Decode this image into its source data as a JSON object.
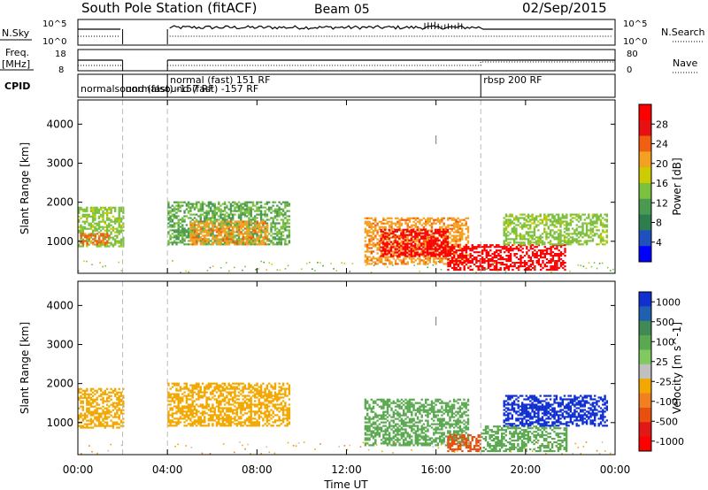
{
  "header": {
    "title": "South Pole Station (fitACF)",
    "beam": "Beam 05",
    "date": "02/Sep/2015"
  },
  "noise_panel": {
    "left_label": "N.Sky",
    "right_label": "N.Search",
    "tick_top": "10^5",
    "tick_bottom": "10^0"
  },
  "freq_panel": {
    "left_label_1": "Freq.",
    "left_label_2": "[MHz]",
    "right_label": "Nave",
    "tick_left_top": "18",
    "tick_left_bottom": "8",
    "tick_right_top": "80",
    "tick_right_bottom": "0"
  },
  "cpid_panel": {
    "label": "CPID",
    "programs": [
      {
        "start_hour": 0.0,
        "text": "normalsound (fast) -157 RF",
        "row": 1
      },
      {
        "start_hour": 2.0,
        "text": "normalsound (fast) -157 RF",
        "row": 1
      },
      {
        "start_hour": 4.0,
        "text": "normal (fast) 151 RF",
        "row": 0
      },
      {
        "start_hour": 18.0,
        "text": "rbsp 200 RF",
        "row": 0
      }
    ]
  },
  "x_axis": {
    "label": "Time UT",
    "ticks": [
      "00:00",
      "04:00",
      "08:00",
      "12:00",
      "16:00",
      "20:00",
      "00:00"
    ],
    "tick_hours": [
      0,
      4,
      8,
      12,
      16,
      20,
      24
    ]
  },
  "colors": {
    "power": [
      "#0000ff",
      "#2050c0",
      "#2e7d4f",
      "#4a9a52",
      "#7cc040",
      "#cccc00",
      "#f4a020",
      "#f06010",
      "#e81010",
      "#ff0000"
    ],
    "velocity": [
      "#1030d0",
      "#2060b0",
      "#3f8a55",
      "#5aa850",
      "#80c860",
      "#c0c0c0",
      "#f2a800",
      "#f08020",
      "#e85010",
      "#e01818",
      "#ff0000"
    ]
  },
  "chart_data": [
    {
      "type": "heatmap",
      "panel": "power",
      "ylabel": "Slant Range [km]",
      "yticks": [
        1000,
        2000,
        3000,
        4000
      ],
      "ylim": [
        180,
        4620
      ],
      "xlim": [
        0,
        24
      ],
      "colorbar_label": "Power [dB]",
      "colorbar_ticks": [
        "4",
        "8",
        "12",
        "16",
        "20",
        "24",
        "28"
      ],
      "colorbar_range": [
        0,
        30
      ],
      "data_gaps_hours": [
        [
          2.0,
          4.0
        ]
      ],
      "echo_regions": [
        {
          "t0": 0.0,
          "t1": 2.0,
          "r0": 850,
          "r1": 1850,
          "value": 14
        },
        {
          "t0": 0.1,
          "t1": 1.4,
          "r0": 900,
          "r1": 1200,
          "value": 22
        },
        {
          "t0": 4.0,
          "t1": 9.4,
          "r0": 900,
          "r1": 2000,
          "value": 12
        },
        {
          "t0": 5.0,
          "t1": 8.5,
          "r0": 900,
          "r1": 1500,
          "value": 20
        },
        {
          "t0": 12.8,
          "t1": 17.4,
          "r0": 400,
          "r1": 1600,
          "value": 20
        },
        {
          "t0": 13.5,
          "t1": 16.5,
          "r0": 600,
          "r1": 1300,
          "value": 28
        },
        {
          "t0": 16.5,
          "t1": 21.8,
          "r0": 250,
          "r1": 900,
          "value": 28
        },
        {
          "t0": 19.0,
          "t1": 23.6,
          "r0": 900,
          "r1": 1700,
          "value": 14
        }
      ]
    },
    {
      "type": "heatmap",
      "panel": "velocity",
      "ylabel": "Slant Range [km]",
      "yticks": [
        1000,
        2000,
        3000,
        4000
      ],
      "ylim": [
        180,
        4620
      ],
      "xlim": [
        0,
        24
      ],
      "colorbar_label": "Velocity [m s^-1]",
      "colorbar_ticks": [
        "1000",
        "500",
        "100",
        "25",
        "-25",
        "-100",
        "-500",
        "-1000"
      ],
      "data_gaps_hours": [
        [
          2.0,
          4.0
        ]
      ],
      "echo_regions": [
        {
          "t0": 0.0,
          "t1": 2.0,
          "r0": 850,
          "r1": 1850,
          "value": -100
        },
        {
          "t0": 4.0,
          "t1": 9.4,
          "r0": 900,
          "r1": 2000,
          "value": -100
        },
        {
          "t0": 12.8,
          "t1": 17.4,
          "r0": 400,
          "r1": 1600,
          "value": 100
        },
        {
          "t0": 16.5,
          "t1": 18.0,
          "r0": 250,
          "r1": 700,
          "value": -500
        },
        {
          "t0": 18.0,
          "t1": 21.8,
          "r0": 250,
          "r1": 900,
          "value": 100
        },
        {
          "t0": 19.0,
          "t1": 23.6,
          "r0": 900,
          "r1": 1700,
          "value": 1000
        }
      ]
    }
  ]
}
